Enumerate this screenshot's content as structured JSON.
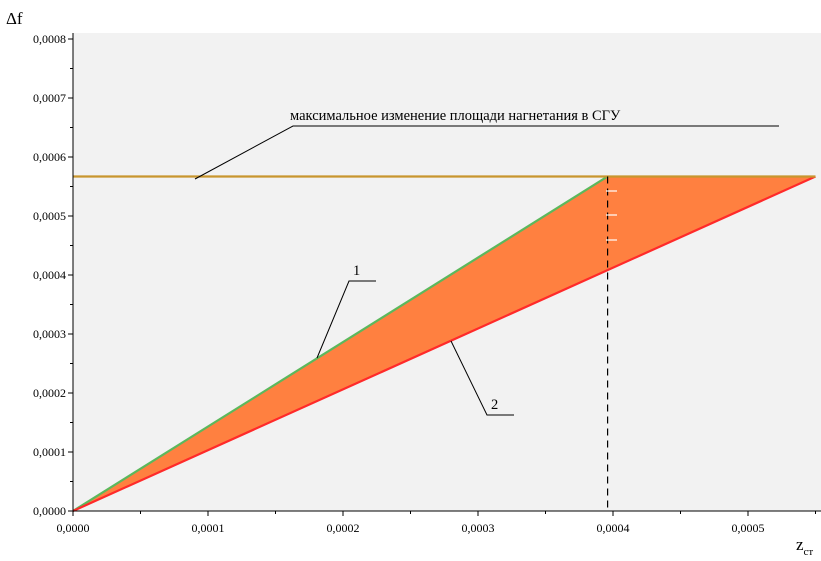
{
  "chart_data": {
    "type": "line",
    "title": "",
    "ylabel": "Δf",
    "xlabel": "z",
    "xlabel_sub": "ст",
    "xlim": [
      0,
      0.00055
    ],
    "ylim": [
      0,
      0.0008
    ],
    "x_ticks": [
      0,
      0.0001,
      0.0002,
      0.0003,
      0.0004,
      0.0005
    ],
    "x_tick_labels": [
      "0,0000",
      "0,0001",
      "0,0002",
      "0,0003",
      "0,0004",
      "0,0005"
    ],
    "y_ticks": [
      0,
      0.0001,
      0.0002,
      0.0003,
      0.0004,
      0.0005,
      0.0006,
      0.0007,
      0.0008
    ],
    "y_tick_labels": [
      "0,0000",
      "0,0001",
      "0,0002",
      "0,0003",
      "0,0004",
      "0,0005",
      "0,0006",
      "0,0007",
      "0,0008"
    ],
    "grid": false,
    "series": [
      {
        "color": "#5cb85c",
        "x": [
          0,
          0.000396
        ],
        "y": [
          0,
          0.000567
        ]
      },
      {
        "color": "#ff2a2a",
        "x": [
          0,
          0.00055
        ],
        "y": [
          0,
          0.000567
        ]
      },
      {
        "color": "#c8962e",
        "x": [
          0,
          0.00055
        ],
        "y": [
          0.000567,
          0.000567
        ]
      }
    ],
    "fill_region": {
      "color": "#ff8040",
      "polygon": [
        [
          0,
          0
        ],
        [
          0.000396,
          0.000567
        ],
        [
          0.00055,
          0.000567
        ]
      ]
    },
    "vertical_marker": {
      "x": 0.000396,
      "y_top": 0.000567,
      "style": "dashed"
    },
    "annotations": [
      {
        "text": "максимальное изменение площади нагнетания в СГУ"
      },
      {
        "text": "1"
      },
      {
        "text": "2"
      }
    ]
  }
}
